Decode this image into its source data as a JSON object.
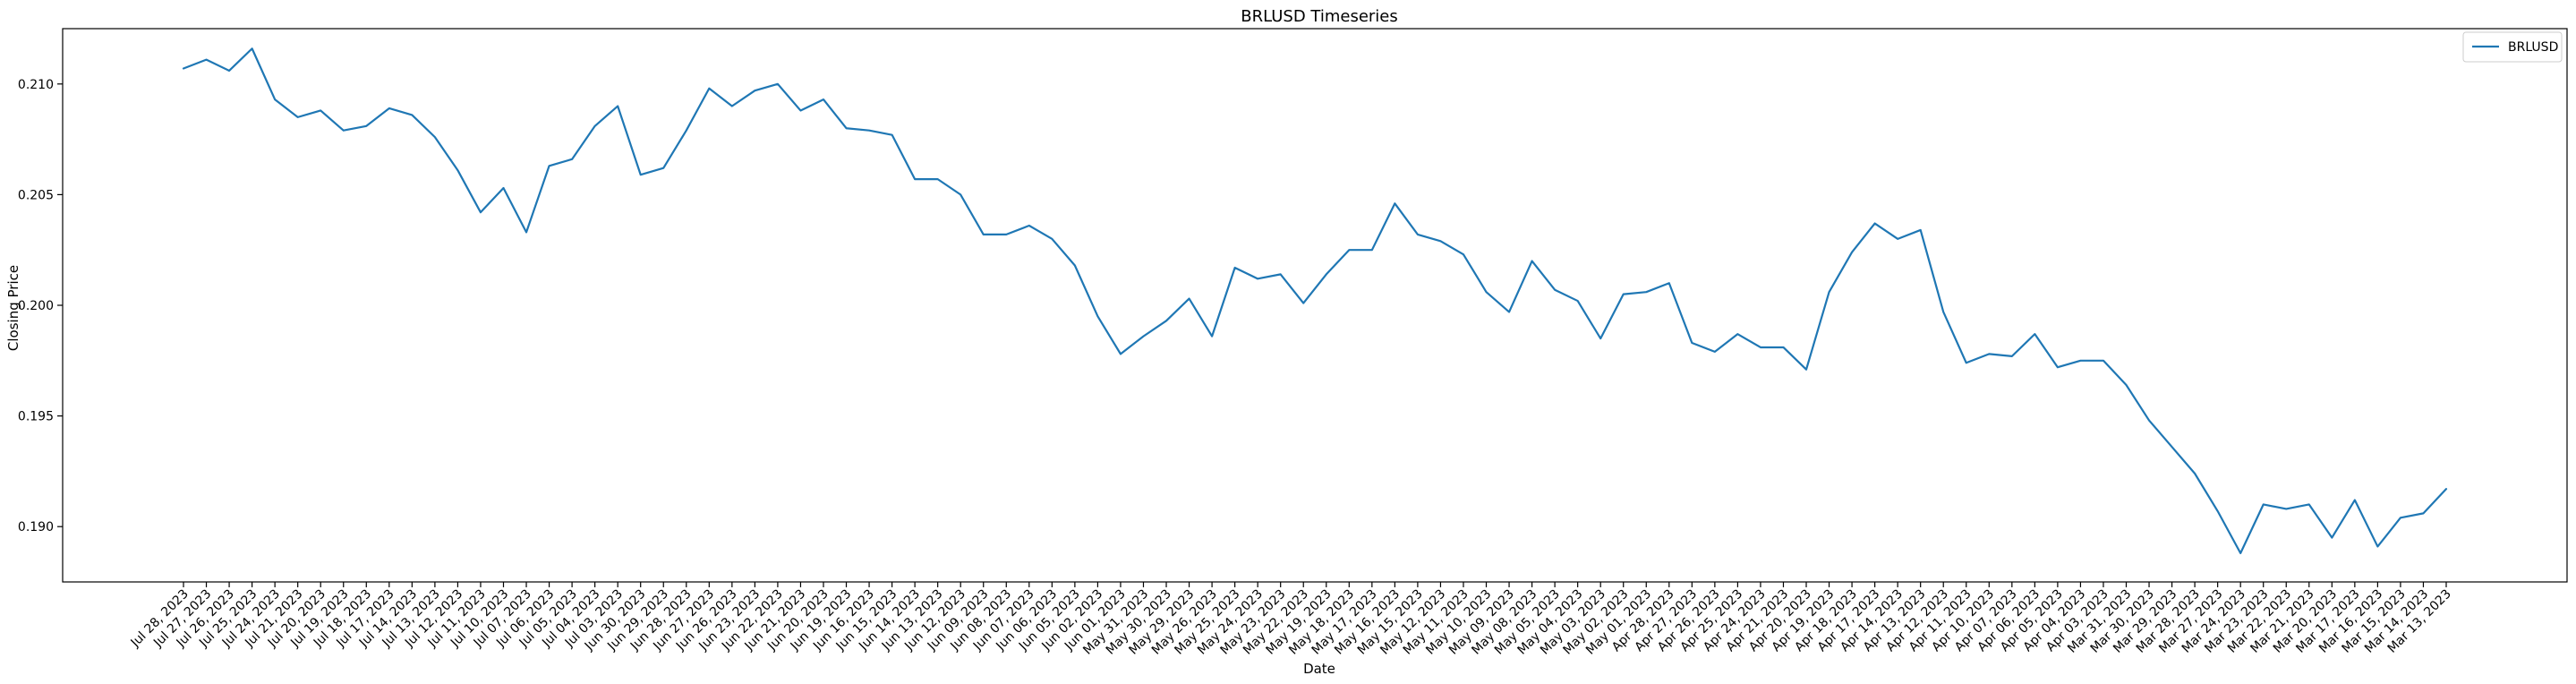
{
  "chart_data": {
    "type": "line",
    "title": "BRLUSD Timeseries",
    "xlabel": "Date",
    "ylabel": "Closing Price",
    "ylim": [
      0.1875,
      0.2125
    ],
    "yticks": [
      0.19,
      0.195,
      0.2,
      0.205,
      0.21
    ],
    "ytick_labels": [
      "0.190",
      "0.195",
      "0.200",
      "0.205",
      "0.210"
    ],
    "grid": false,
    "legend_position": "top-right",
    "series": [
      {
        "name": "BRLUSD",
        "color": "#1f77b4",
        "values": [
          0.2107,
          0.2111,
          0.2106,
          0.2116,
          0.2093,
          0.2085,
          0.2088,
          0.2079,
          0.2081,
          0.2089,
          0.2086,
          0.2076,
          0.2061,
          0.2042,
          0.2053,
          0.2033,
          0.2063,
          0.2066,
          0.2081,
          0.209,
          0.2059,
          0.2062,
          0.2079,
          0.2098,
          0.209,
          0.2097,
          0.21,
          0.2088,
          0.2093,
          0.208,
          0.2079,
          0.2077,
          0.2057,
          0.2057,
          0.205,
          0.2032,
          0.2032,
          0.2036,
          0.203,
          0.2018,
          0.1995,
          0.1978,
          0.1986,
          0.1993,
          0.2003,
          0.1986,
          0.2017,
          0.2012,
          0.2014,
          0.2001,
          0.2014,
          0.2025,
          0.2025,
          0.2046,
          0.2032,
          0.2029,
          0.2023,
          0.2006,
          0.1997,
          0.202,
          0.2007,
          0.2002,
          0.1985,
          0.2005,
          0.2006,
          0.201,
          0.1983,
          0.1979,
          0.1987,
          0.1981,
          0.1981,
          0.1971,
          0.2006,
          0.2024,
          0.2037,
          0.203,
          0.2034,
          0.1997,
          0.1974,
          0.1978,
          0.1977,
          0.1987,
          0.1972,
          0.1975,
          0.1975,
          0.1964,
          0.1948,
          0.1936,
          0.1924,
          0.1907,
          0.1888,
          0.191,
          0.1908,
          0.191,
          0.1895,
          0.1912,
          0.1891,
          0.1904,
          0.1906,
          0.1917
        ]
      }
    ],
    "x": [
      "Jul 28, 2023",
      "Jul 27, 2023",
      "Jul 26, 2023",
      "Jul 25, 2023",
      "Jul 24, 2023",
      "Jul 21, 2023",
      "Jul 20, 2023",
      "Jul 19, 2023",
      "Jul 18, 2023",
      "Jul 17, 2023",
      "Jul 14, 2023",
      "Jul 13, 2023",
      "Jul 12, 2023",
      "Jul 11, 2023",
      "Jul 10, 2023",
      "Jul 07, 2023",
      "Jul 06, 2023",
      "Jul 05, 2023",
      "Jul 04, 2023",
      "Jul 03, 2023",
      "Jun 30, 2023",
      "Jun 29, 2023",
      "Jun 28, 2023",
      "Jun 27, 2023",
      "Jun 26, 2023",
      "Jun 23, 2023",
      "Jun 22, 2023",
      "Jun 21, 2023",
      "Jun 20, 2023",
      "Jun 19, 2023",
      "Jun 16, 2023",
      "Jun 15, 2023",
      "Jun 14, 2023",
      "Jun 13, 2023",
      "Jun 12, 2023",
      "Jun 09, 2023",
      "Jun 08, 2023",
      "Jun 07, 2023",
      "Jun 06, 2023",
      "Jun 05, 2023",
      "Jun 02, 2023",
      "Jun 01, 2023",
      "May 31, 2023",
      "May 30, 2023",
      "May 29, 2023",
      "May 26, 2023",
      "May 25, 2023",
      "May 24, 2023",
      "May 23, 2023",
      "May 22, 2023",
      "May 19, 2023",
      "May 18, 2023",
      "May 17, 2023",
      "May 16, 2023",
      "May 15, 2023",
      "May 12, 2023",
      "May 11, 2023",
      "May 10, 2023",
      "May 09, 2023",
      "May 08, 2023",
      "May 05, 2023",
      "May 04, 2023",
      "May 03, 2023",
      "May 02, 2023",
      "May 01, 2023",
      "Apr 28, 2023",
      "Apr 27, 2023",
      "Apr 26, 2023",
      "Apr 25, 2023",
      "Apr 24, 2023",
      "Apr 21, 2023",
      "Apr 20, 2023",
      "Apr 19, 2023",
      "Apr 18, 2023",
      "Apr 17, 2023",
      "Apr 14, 2023",
      "Apr 13, 2023",
      "Apr 12, 2023",
      "Apr 11, 2023",
      "Apr 10, 2023",
      "Apr 07, 2023",
      "Apr 06, 2023",
      "Apr 05, 2023",
      "Apr 04, 2023",
      "Apr 03, 2023",
      "Mar 31, 2023",
      "Mar 30, 2023",
      "Mar 29, 2023",
      "Mar 28, 2023",
      "Mar 27, 2023",
      "Mar 24, 2023",
      "Mar 23, 2023",
      "Mar 22, 2023",
      "Mar 21, 2023",
      "Mar 20, 2023",
      "Mar 17, 2023",
      "Mar 16, 2023",
      "Mar 15, 2023",
      "Mar 14, 2023",
      "Mar 13, 2023"
    ]
  }
}
